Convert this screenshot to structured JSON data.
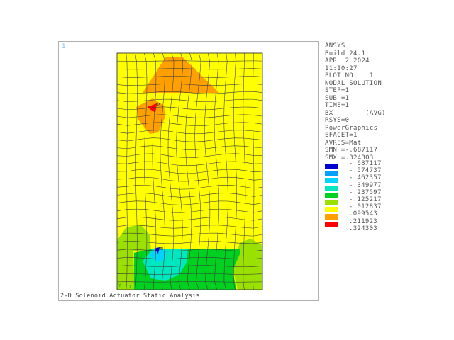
{
  "window": {
    "number": "1",
    "footer_title": "2-D Solenoid Actuator Static Analysis"
  },
  "info": {
    "lines": [
      "ANSYS",
      "Build 24.1",
      "APR  2 2024",
      "11:10:27",
      "PLOT NO.   1",
      "NODAL SOLUTION",
      "STEP=1",
      "SUB =1",
      "TIME=1",
      "BX        (AVG)",
      "RSYS=0",
      "PowerGraphics",
      "EFACET=1",
      "AVRES=Mat",
      "SMN =-.687117",
      "SMX =.324303"
    ]
  },
  "legend": {
    "colors": [
      "#0000d0",
      "#00a0ff",
      "#00d4ff",
      "#00e8c0",
      "#00d020",
      "#9ae000",
      "#ffff00",
      "#ffa000",
      "#ff0000"
    ],
    "values": [
      "-.687117",
      "-.574737",
      "-.462357",
      "-.349977",
      "-.237597",
      "-.125217",
      "-.012837",
      ".099543",
      ".211923",
      ".324303"
    ]
  },
  "markers": {
    "mx": "MX",
    "mn": "MN",
    "axis": "Y\nX"
  },
  "colors": {
    "yellow": "#ffff00",
    "orange": "#ffa000",
    "red": "#ff0000",
    "light_green": "#9ae000",
    "green": "#00d020",
    "cyan": "#00e8c0",
    "blue": "#0000d0",
    "mesh": "#3a3a3a"
  }
}
